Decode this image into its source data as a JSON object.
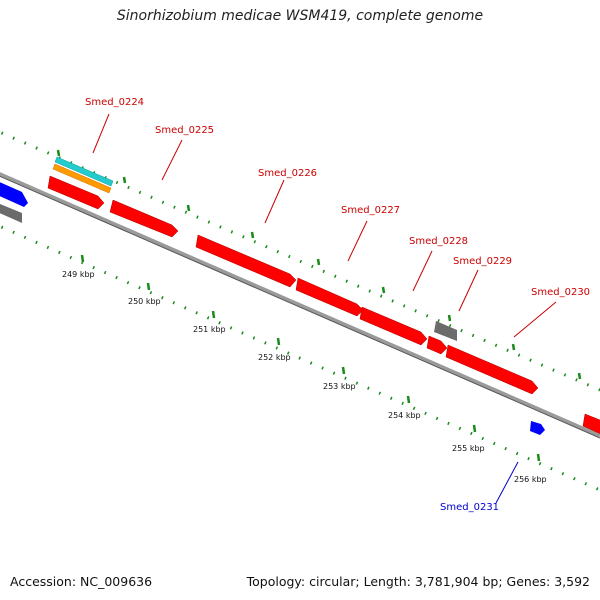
{
  "title": "Sinorhizobium medicae WSM419, complete genome",
  "footer": {
    "accession": "Accession: NC_009636",
    "summary": "Topology: circular; Length: 3,781,904 bp; Genes: 3,592"
  },
  "colors": {
    "background": "#ffffff",
    "backbone": "#9a9a9a",
    "tick_green": "#1a8a1a",
    "gene_red": "#ff0000",
    "gene_blue": "#0000ff",
    "gene_gray": "#6b6b6b",
    "track_cyan": "#22cccc",
    "track_orange": "#ff9900",
    "label_red": "#cc0000",
    "label_blue": "#0000cc"
  },
  "scale_labels": [
    "249 kbp",
    "250 kbp",
    "251 kbp",
    "252 kbp",
    "253 kbp",
    "254 kbp",
    "255 kbp",
    "256 kbp"
  ],
  "gene_labels": [
    {
      "name": "Smed_0224",
      "color": "red"
    },
    {
      "name": "Smed_0225",
      "color": "red"
    },
    {
      "name": "Smed_0226",
      "color": "red"
    },
    {
      "name": "Smed_0227",
      "color": "red"
    },
    {
      "name": "Smed_0228",
      "color": "red"
    },
    {
      "name": "Smed_0229",
      "color": "red"
    },
    {
      "name": "Smed_0230",
      "color": "red"
    },
    {
      "name": "Smed_0231",
      "color": "blue"
    }
  ]
}
